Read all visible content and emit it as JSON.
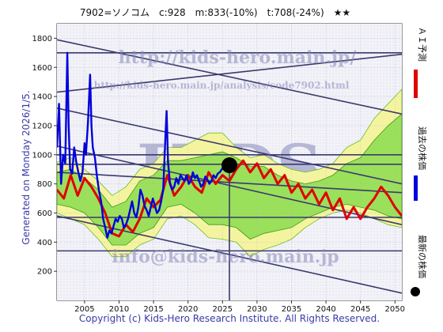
{
  "chart_data": {
    "type": "line",
    "title": "7902=ソノコム　c:928　m:833(-10%)　t:708(-24%)　★★",
    "side_text": "Generated on Monday 2026/1/5.",
    "copyright": "Copyright (c) Kids-Hero Research Institute. All Rights Reserved.",
    "watermarks": {
      "main": "http://kids-hero.main.jp/",
      "analysis": "http://kids-hero.main.jp/analysis/code7902.html",
      "big": "KIDS",
      "email": "info@kids-hero.main.jp"
    },
    "xlim": [
      2001,
      2051
    ],
    "ylim": [
      0,
      1900
    ],
    "x_ticks": [
      "2005",
      "2010",
      "2015",
      "2020",
      "2025",
      "2030",
      "2035",
      "2040",
      "2045",
      "2050"
    ],
    "y_ticks": [
      "200",
      "400",
      "600",
      "800",
      "1000",
      "1200",
      "1400",
      "1600",
      "1800"
    ],
    "legend": [
      {
        "label": "ＡＩ予測",
        "color": "#e00000"
      },
      {
        "label": "過去の株価",
        "color": "#0000dd"
      },
      {
        "label": "最新の株価",
        "color": "#000000"
      }
    ],
    "latest": {
      "x": 2026.0,
      "y": 928
    },
    "trend_lines": [
      {
        "x0": 2001,
        "y0": 1700,
        "x1": 2051,
        "y1": 1700
      },
      {
        "x0": 2001,
        "y0": 935,
        "x1": 2051,
        "y1": 935
      },
      {
        "x0": 2001,
        "y0": 570,
        "x1": 2051,
        "y1": 570
      },
      {
        "x0": 2001,
        "y0": 340,
        "x1": 2051,
        "y1": 340
      },
      {
        "x0": 2001,
        "y0": 1430,
        "x1": 2051,
        "y1": 1690
      },
      {
        "x0": 2001,
        "y0": 1000,
        "x1": 2051,
        "y1": 1000
      },
      {
        "x0": 2001,
        "y0": 1790,
        "x1": 2051,
        "y1": 1280
      },
      {
        "x0": 2001,
        "y0": 1320,
        "x1": 2051,
        "y1": 800
      },
      {
        "x0": 2001,
        "y0": 1060,
        "x1": 2051,
        "y1": 520
      },
      {
        "x0": 2001,
        "y0": 580,
        "x1": 2051,
        "y1": 50
      },
      {
        "x0": 2001,
        "y0": 880,
        "x1": 2051,
        "y1": 740
      },
      {
        "x0": 2026,
        "y0": 0,
        "x1": 2026,
        "y1": 928
      }
    ],
    "series": [
      {
        "name": "過去の株価",
        "color": "#0000dd",
        "points": [
          [
            2001.0,
            1050
          ],
          [
            2001.3,
            1350
          ],
          [
            2001.6,
            800
          ],
          [
            2001.9,
            1000
          ],
          [
            2002.2,
            940
          ],
          [
            2002.5,
            1700
          ],
          [
            2002.7,
            1200
          ],
          [
            2002.9,
            900
          ],
          [
            2003.2,
            870
          ],
          [
            2003.5,
            1050
          ],
          [
            2003.8,
            950
          ],
          [
            2004.1,
            880
          ],
          [
            2004.4,
            820
          ],
          [
            2004.7,
            880
          ],
          [
            2005.0,
            1080
          ],
          [
            2005.2,
            1000
          ],
          [
            2005.5,
            1220
          ],
          [
            2005.8,
            1550
          ],
          [
            2006.0,
            1200
          ],
          [
            2006.2,
            1050
          ],
          [
            2006.5,
            980
          ],
          [
            2006.8,
            850
          ],
          [
            2007.1,
            750
          ],
          [
            2007.4,
            680
          ],
          [
            2007.7,
            560
          ],
          [
            2008.0,
            500
          ],
          [
            2008.3,
            430
          ],
          [
            2008.6,
            480
          ],
          [
            2008.9,
            460
          ],
          [
            2009.2,
            510
          ],
          [
            2009.5,
            560
          ],
          [
            2009.8,
            540
          ],
          [
            2010.1,
            580
          ],
          [
            2010.4,
            560
          ],
          [
            2010.7,
            500
          ],
          [
            2011.0,
            520
          ],
          [
            2011.3,
            560
          ],
          [
            2011.6,
            620
          ],
          [
            2011.9,
            680
          ],
          [
            2012.2,
            600
          ],
          [
            2012.5,
            570
          ],
          [
            2012.8,
            640
          ],
          [
            2013.1,
            760
          ],
          [
            2013.4,
            720
          ],
          [
            2013.7,
            650
          ],
          [
            2014.0,
            620
          ],
          [
            2014.3,
            580
          ],
          [
            2014.6,
            640
          ],
          [
            2014.9,
            700
          ],
          [
            2015.2,
            650
          ],
          [
            2015.5,
            600
          ],
          [
            2015.8,
            620
          ],
          [
            2016.1,
            680
          ],
          [
            2016.4,
            760
          ],
          [
            2016.7,
            1100
          ],
          [
            2016.9,
            1300
          ],
          [
            2017.1,
            950
          ],
          [
            2017.4,
            800
          ],
          [
            2017.7,
            760
          ],
          [
            2018.0,
            780
          ],
          [
            2018.3,
            840
          ],
          [
            2018.6,
            800
          ],
          [
            2018.9,
            860
          ],
          [
            2019.2,
            840
          ],
          [
            2019.5,
            820
          ],
          [
            2019.8,
            860
          ],
          [
            2020.1,
            800
          ],
          [
            2020.4,
            820
          ],
          [
            2020.7,
            880
          ],
          [
            2021.0,
            840
          ],
          [
            2021.3,
            860
          ],
          [
            2021.6,
            820
          ],
          [
            2021.9,
            780
          ],
          [
            2022.2,
            800
          ],
          [
            2022.5,
            850
          ],
          [
            2022.8,
            830
          ],
          [
            2023.1,
            800
          ],
          [
            2023.4,
            820
          ],
          [
            2023.7,
            860
          ],
          [
            2024.0,
            840
          ],
          [
            2024.3,
            870
          ],
          [
            2024.6,
            880
          ],
          [
            2024.9,
            900
          ],
          [
            2025.2,
            920
          ],
          [
            2025.6,
            928
          ]
        ]
      },
      {
        "name": "ＡＩ予測",
        "color": "#e00000",
        "points": [
          [
            2001.0,
            760
          ],
          [
            2002.0,
            700
          ],
          [
            2003.0,
            860
          ],
          [
            2004.0,
            720
          ],
          [
            2005.0,
            840
          ],
          [
            2006.0,
            780
          ],
          [
            2007.0,
            700
          ],
          [
            2008.0,
            600
          ],
          [
            2009.0,
            460
          ],
          [
            2010.0,
            440
          ],
          [
            2011.0,
            520
          ],
          [
            2012.0,
            470
          ],
          [
            2013.0,
            560
          ],
          [
            2014.0,
            700
          ],
          [
            2015.0,
            640
          ],
          [
            2016.0,
            690
          ],
          [
            2017.0,
            860
          ],
          [
            2018.0,
            720
          ],
          [
            2019.0,
            780
          ],
          [
            2020.0,
            860
          ],
          [
            2021.0,
            780
          ],
          [
            2022.0,
            740
          ],
          [
            2023.0,
            880
          ],
          [
            2024.0,
            800
          ],
          [
            2025.0,
            860
          ],
          [
            2026.0,
            820
          ],
          [
            2027.0,
            900
          ],
          [
            2028.0,
            960
          ],
          [
            2029.0,
            880
          ],
          [
            2030.0,
            940
          ],
          [
            2031.0,
            840
          ],
          [
            2032.0,
            900
          ],
          [
            2033.0,
            800
          ],
          [
            2034.0,
            860
          ],
          [
            2035.0,
            740
          ],
          [
            2036.0,
            800
          ],
          [
            2037.0,
            700
          ],
          [
            2038.0,
            760
          ],
          [
            2039.0,
            660
          ],
          [
            2040.0,
            740
          ],
          [
            2041.0,
            620
          ],
          [
            2042.0,
            700
          ],
          [
            2043.0,
            560
          ],
          [
            2044.0,
            640
          ],
          [
            2045.0,
            560
          ],
          [
            2046.0,
            640
          ],
          [
            2047.0,
            700
          ],
          [
            2048.0,
            780
          ],
          [
            2049.0,
            720
          ],
          [
            2050.0,
            640
          ],
          [
            2051.0,
            580
          ]
        ]
      }
    ],
    "bands": {
      "outer_upper": [
        [
          2001,
          950
        ],
        [
          2003,
          980
        ],
        [
          2005,
          900
        ],
        [
          2007,
          820
        ],
        [
          2009,
          720
        ],
        [
          2011,
          780
        ],
        [
          2013,
          900
        ],
        [
          2015,
          940
        ],
        [
          2017,
          1050
        ],
        [
          2019,
          1050
        ],
        [
          2021,
          1100
        ],
        [
          2023,
          1150
        ],
        [
          2025,
          1150
        ],
        [
          2027,
          1050
        ],
        [
          2029,
          980
        ],
        [
          2031,
          1000
        ],
        [
          2033,
          940
        ],
        [
          2035,
          900
        ],
        [
          2037,
          880
        ],
        [
          2039,
          900
        ],
        [
          2041,
          940
        ],
        [
          2043,
          1050
        ],
        [
          2045,
          1100
        ],
        [
          2047,
          1250
        ],
        [
          2049,
          1350
        ],
        [
          2051,
          1450
        ]
      ],
      "outer_lower": [
        [
          2001,
          600
        ],
        [
          2003,
          560
        ],
        [
          2005,
          520
        ],
        [
          2007,
          420
        ],
        [
          2009,
          300
        ],
        [
          2011,
          300
        ],
        [
          2013,
          380
        ],
        [
          2015,
          420
        ],
        [
          2017,
          560
        ],
        [
          2019,
          580
        ],
        [
          2021,
          520
        ],
        [
          2023,
          430
        ],
        [
          2025,
          420
        ],
        [
          2027,
          400
        ],
        [
          2029,
          300
        ],
        [
          2031,
          350
        ],
        [
          2033,
          380
        ],
        [
          2035,
          420
        ],
        [
          2037,
          500
        ],
        [
          2039,
          560
        ],
        [
          2041,
          600
        ],
        [
          2043,
          620
        ],
        [
          2045,
          600
        ],
        [
          2047,
          560
        ],
        [
          2049,
          520
        ],
        [
          2051,
          500
        ]
      ],
      "inner_upper": [
        [
          2001,
          880
        ],
        [
          2003,
          900
        ],
        [
          2005,
          840
        ],
        [
          2007,
          760
        ],
        [
          2009,
          640
        ],
        [
          2011,
          680
        ],
        [
          2013,
          820
        ],
        [
          2015,
          860
        ],
        [
          2017,
          960
        ],
        [
          2019,
          960
        ],
        [
          2021,
          980
        ],
        [
          2023,
          1000
        ],
        [
          2025,
          1020
        ],
        [
          2027,
          980
        ],
        [
          2029,
          920
        ],
        [
          2031,
          920
        ],
        [
          2033,
          860
        ],
        [
          2035,
          820
        ],
        [
          2037,
          800
        ],
        [
          2039,
          820
        ],
        [
          2041,
          860
        ],
        [
          2043,
          940
        ],
        [
          2045,
          980
        ],
        [
          2047,
          1100
        ],
        [
          2049,
          1200
        ],
        [
          2051,
          1280
        ]
      ],
      "inner_lower": [
        [
          2001,
          660
        ],
        [
          2003,
          640
        ],
        [
          2005,
          600
        ],
        [
          2007,
          500
        ],
        [
          2009,
          380
        ],
        [
          2011,
          380
        ],
        [
          2013,
          460
        ],
        [
          2015,
          500
        ],
        [
          2017,
          640
        ],
        [
          2019,
          660
        ],
        [
          2021,
          600
        ],
        [
          2023,
          520
        ],
        [
          2025,
          520
        ],
        [
          2027,
          500
        ],
        [
          2029,
          420
        ],
        [
          2031,
          460
        ],
        [
          2033,
          480
        ],
        [
          2035,
          500
        ],
        [
          2037,
          560
        ],
        [
          2039,
          600
        ],
        [
          2041,
          640
        ],
        [
          2043,
          660
        ],
        [
          2045,
          640
        ],
        [
          2047,
          620
        ],
        [
          2049,
          580
        ],
        [
          2051,
          560
        ]
      ]
    }
  }
}
